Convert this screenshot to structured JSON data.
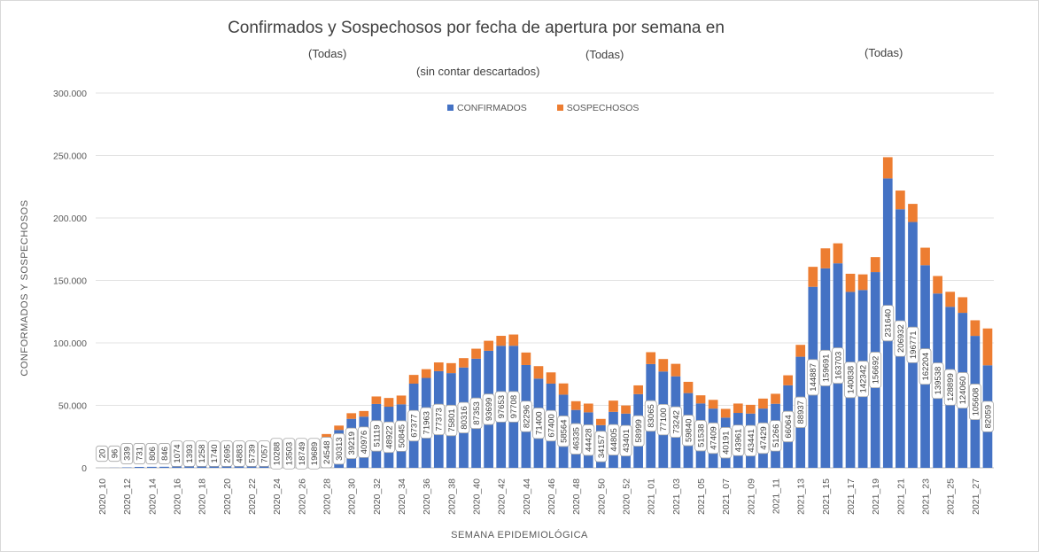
{
  "chart_data": {
    "type": "bar",
    "stacked": true,
    "title": "Confirmados y Sospechosos por fecha de apertura por semana en",
    "filters": [
      "(Todas)",
      "(Todas)",
      "(Todas)"
    ],
    "subtitle": "(sin contar descartados)",
    "xlabel": "SEMANA EPIDEMIOLÓGICA",
    "ylabel": "CONFORMADOS Y SOSPECHOSOS",
    "ylim": [
      0,
      300000
    ],
    "yticks": [
      "0",
      "50.000",
      "100.000",
      "150.000",
      "200.000",
      "250.000",
      "300.000"
    ],
    "ytick_values": [
      0,
      50000,
      100000,
      150000,
      200000,
      250000,
      300000
    ],
    "legend_position": "top-center",
    "grid": true,
    "categories": [
      "2020_10",
      "2020_11",
      "2020_12",
      "2020_13",
      "2020_14",
      "2020_15",
      "2020_16",
      "2020_17",
      "2020_18",
      "2020_19",
      "2020_20",
      "2020_21",
      "2020_22",
      "2020_23",
      "2020_24",
      "2020_25",
      "2020_26",
      "2020_27",
      "2020_28",
      "2020_29",
      "2020_30",
      "2020_31",
      "2020_32",
      "2020_33",
      "2020_34",
      "2020_35",
      "2020_36",
      "2020_37",
      "2020_38",
      "2020_39",
      "2020_40",
      "2020_41",
      "2020_42",
      "2020_43",
      "2020_44",
      "2020_45",
      "2020_46",
      "2020_47",
      "2020_48",
      "2020_49",
      "2020_50",
      "2020_51",
      "2020_52",
      "2020_53",
      "2021_01",
      "2021_02",
      "2021_03",
      "2021_04",
      "2021_05",
      "2021_06",
      "2021_07",
      "2021_08",
      "2021_09",
      "2021_10",
      "2021_11",
      "2021_12",
      "2021_13",
      "2021_14",
      "2021_15",
      "2021_16",
      "2021_17",
      "2021_18",
      "2021_19",
      "2021_20",
      "2021_21",
      "2021_22",
      "2021_23",
      "2021_24",
      "2021_25",
      "2021_26",
      "2021_27",
      "2021_28"
    ],
    "tick_labels": [
      "2020_10",
      "",
      "2020_12",
      "",
      "2020_14",
      "",
      "2020_16",
      "",
      "2020_18",
      "",
      "2020_20",
      "",
      "2020_22",
      "",
      "2020_24",
      "",
      "2020_26",
      "",
      "2020_28",
      "",
      "2020_30",
      "",
      "2020_32",
      "",
      "2020_34",
      "",
      "2020_36",
      "",
      "2020_38",
      "",
      "2020_40",
      "",
      "2020_42",
      "",
      "2020_44",
      "",
      "2020_46",
      "",
      "2020_48",
      "",
      "2020_50",
      "",
      "2020_52",
      "",
      "2021_01",
      "",
      "2021_03",
      "",
      "2021_05",
      "",
      "2021_07",
      "",
      "2021_09",
      "",
      "2021_11",
      "",
      "2021_13",
      "",
      "2021_15",
      "",
      "2021_17",
      "",
      "2021_19",
      "",
      "2021_21",
      "",
      "2021_23",
      "",
      "2021_25",
      "",
      "2021_27",
      ""
    ],
    "series": [
      {
        "name": "CONFIRMADOS",
        "color": "#4472c4",
        "values": [
          20,
          96,
          339,
          731,
          806,
          846,
          1074,
          1393,
          1258,
          1740,
          2695,
          4883,
          5739,
          7057,
          10288,
          13503,
          18749,
          19689,
          24548,
          30313,
          39219,
          40976,
          51119,
          48922,
          50845,
          67377,
          71963,
          77373,
          75801,
          80316,
          87353,
          93699,
          97653,
          97708,
          82296,
          71400,
          67400,
          58564,
          46335,
          44428,
          34157,
          44805,
          43401,
          58999,
          83065,
          77100,
          73242,
          59840,
          51538,
          47409,
          40191,
          43961,
          43441,
          47429,
          51266,
          66064,
          88937,
          144887,
          159691,
          163703,
          140838,
          142342,
          156692,
          231640,
          206932,
          196771,
          162204,
          139538,
          128899,
          124060,
          105608,
          82059
        ]
      },
      {
        "name": "SOSPECHOSOS",
        "color": "#ed7d31",
        "values": [
          0,
          0,
          0,
          0,
          0,
          0,
          0,
          0,
          0,
          0,
          0,
          0,
          0,
          0,
          0,
          0,
          0,
          0,
          2500,
          3500,
          4500,
          4500,
          6000,
          7000,
          7000,
          7000,
          7000,
          7000,
          8000,
          7500,
          8000,
          8000,
          8000,
          9000,
          10000,
          10000,
          9000,
          9000,
          7000,
          7000,
          5000,
          9000,
          6500,
          7000,
          9500,
          10000,
          10000,
          9000,
          6500,
          7000,
          7000,
          7500,
          7000,
          8000,
          8000,
          8000,
          9500,
          16000,
          16000,
          16000,
          14500,
          12500,
          12000,
          17000,
          15000,
          14500,
          14000,
          14000,
          12000,
          12500,
          12500,
          29500
        ]
      }
    ]
  }
}
